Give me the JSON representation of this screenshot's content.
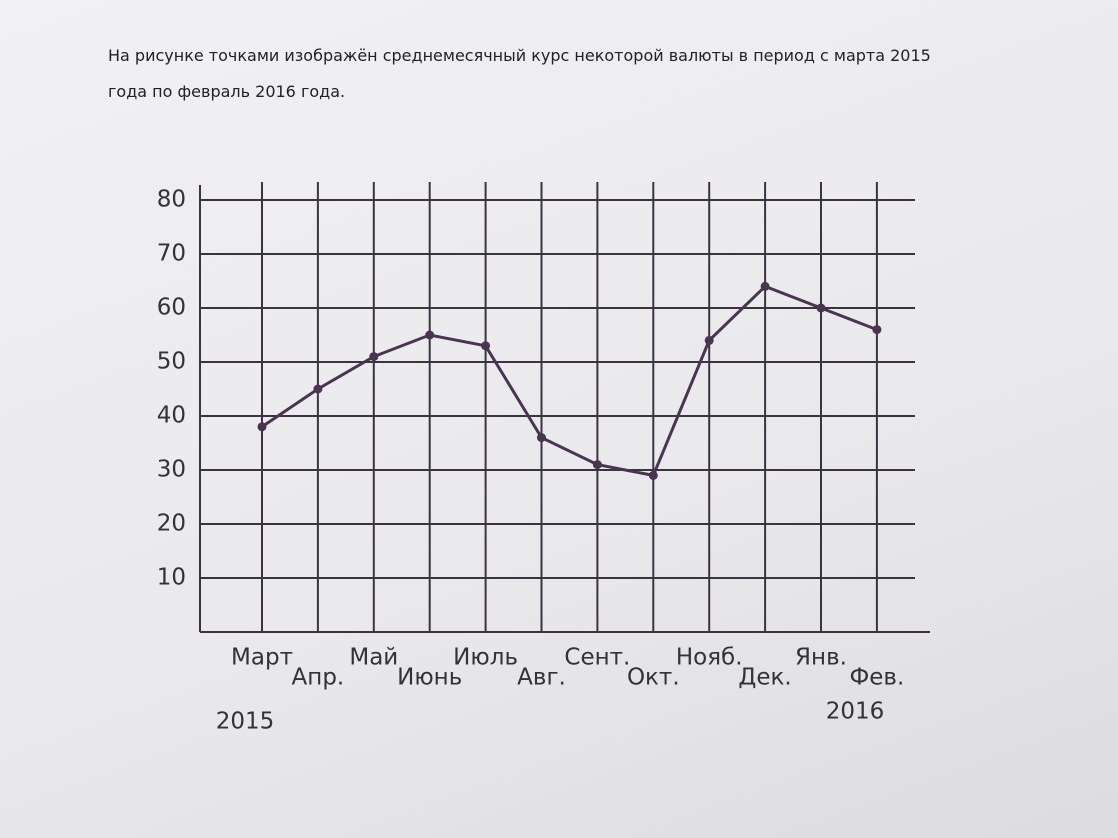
{
  "problem_text": "На рисунке точками изображён среднемесячный курс некоторой валюты в период с марта 2015 года по февраль 2016 года.",
  "chart_data": {
    "type": "line",
    "categories": [
      "Март",
      "Апр.",
      "Май",
      "Июнь",
      "Июль",
      "Авг.",
      "Сент.",
      "Окт.",
      "Нояб.",
      "Дек.",
      "Янв.",
      "Фев."
    ],
    "values": [
      38,
      45,
      51,
      55,
      53,
      36,
      31,
      29,
      54,
      64,
      60,
      56
    ],
    "color": "#4a3550",
    "ylim": [
      0,
      80
    ],
    "yticks": [
      10,
      20,
      30,
      40,
      50,
      60,
      70,
      80
    ],
    "grid": true,
    "annotations": [
      "2015",
      "2016"
    ]
  }
}
